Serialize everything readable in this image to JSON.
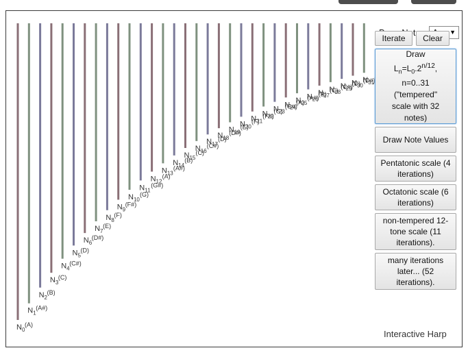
{
  "controls": {
    "base_note_label": "Base Note:",
    "base_note_value": "A",
    "iterate_label": "Iterate",
    "clear_label": "Clear"
  },
  "buttons": {
    "tempered_lines": [
      "Draw",
      "Ln=L0.2n/12,",
      "n=0..31",
      "(\"tempered\"",
      "scale with 32",
      "notes)"
    ],
    "draw_note_values": "Draw Note Values",
    "pentatonic": "Pentatonic scale (4 iterations)",
    "octatonic": "Octatonic scale (6 iterations)",
    "non_tempered": "non-tempered 12-tone scale (11 iterations).",
    "many_iterations": "many iterations later... (52 iterations)."
  },
  "footer": "Interactive Harp",
  "notes": [
    {
      "n": "N0",
      "name": "(A)"
    },
    {
      "n": "N1",
      "name": "(A#)"
    },
    {
      "n": "N2",
      "name": "(B)"
    },
    {
      "n": "N3",
      "name": "(C)"
    },
    {
      "n": "N4",
      "name": "(C#)"
    },
    {
      "n": "N5",
      "name": "(D)"
    },
    {
      "n": "N6",
      "name": "(D#)"
    },
    {
      "n": "N7",
      "name": "(E)"
    },
    {
      "n": "N8",
      "name": "(F)"
    },
    {
      "n": "N9",
      "name": "(F#)"
    },
    {
      "n": "N10",
      "name": "(G)"
    },
    {
      "n": "N11",
      "name": "(G#)"
    },
    {
      "n": "N12",
      "name": "(A)"
    },
    {
      "n": "N13",
      "name": "(A#)"
    },
    {
      "n": "N14",
      "name": "(B)"
    },
    {
      "n": "N15",
      "name": "(C)"
    },
    {
      "n": "N16",
      "name": "(C#)"
    },
    {
      "n": "N17",
      "name": "(D)"
    },
    {
      "n": "N18",
      "name": "(D#)"
    },
    {
      "n": "N19",
      "name": "(E)"
    },
    {
      "n": "N20",
      "name": "(F)"
    },
    {
      "n": "N21",
      "name": "(F#)"
    },
    {
      "n": "N22",
      "name": "(G)"
    },
    {
      "n": "N23",
      "name": "(G#)"
    },
    {
      "n": "N24",
      "name": "(A)"
    },
    {
      "n": "N25",
      "name": "(A#)"
    },
    {
      "n": "N26",
      "name": "(B)"
    },
    {
      "n": "N27",
      "name": "(C)"
    },
    {
      "n": "N28",
      "name": "(C#)"
    },
    {
      "n": "N29",
      "name": "(D)"
    },
    {
      "n": "N30",
      "name": "(D#)"
    },
    {
      "n": "N31",
      "name": "(E)"
    }
  ],
  "string_colors": [
    "#8a6f76",
    "#7f917f",
    "#7b7a9a"
  ]
}
